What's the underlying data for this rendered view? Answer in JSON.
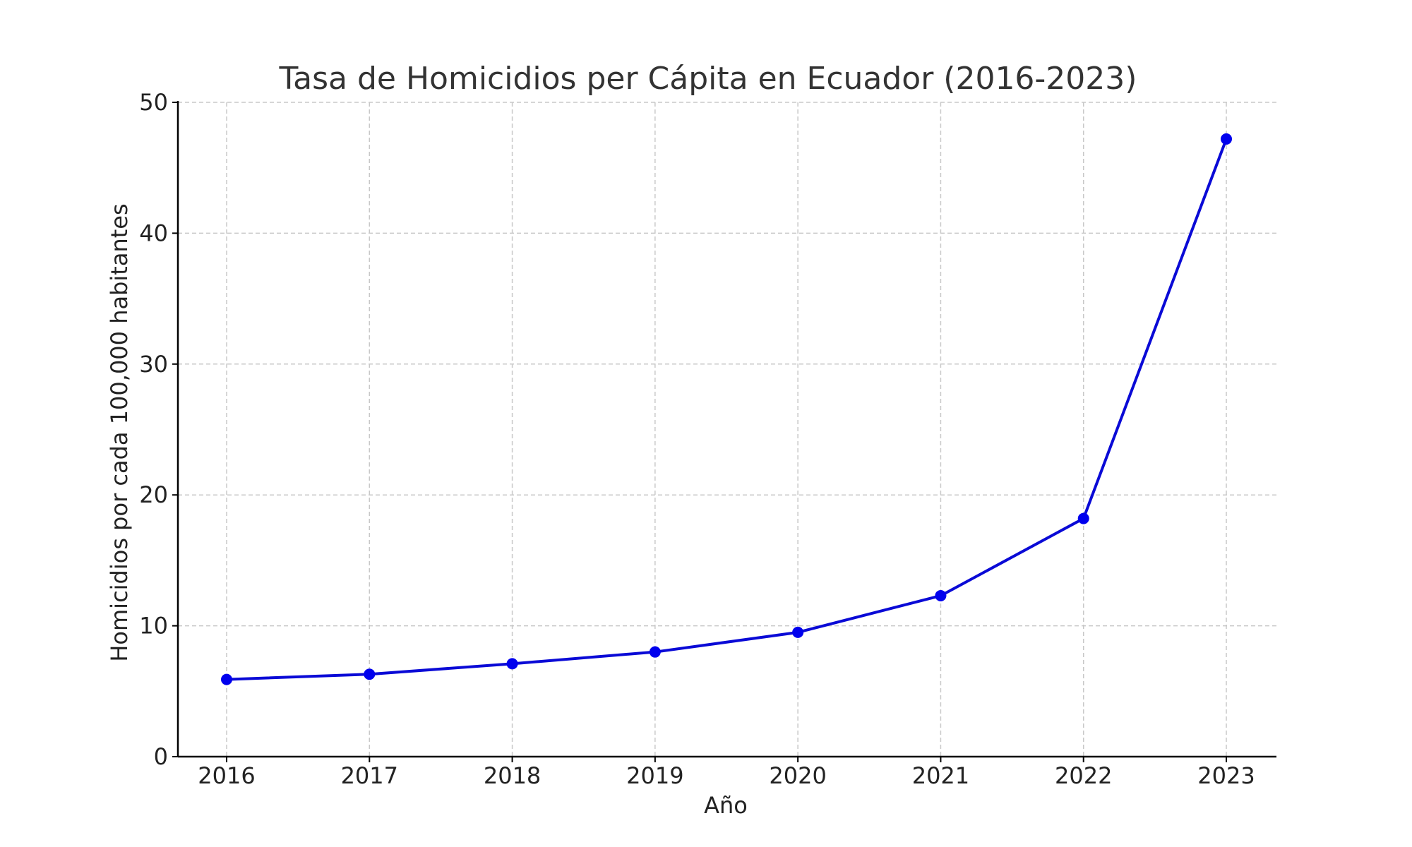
{
  "chart_data": {
    "type": "line",
    "title": "Tasa de Homicidios per Cápita en Ecuador (2016-2023)",
    "xlabel": "Año",
    "ylabel": "Homicidios por cada 100,000 habitantes",
    "categories": [
      "2016",
      "2017",
      "2018",
      "2019",
      "2020",
      "2021",
      "2022",
      "2023"
    ],
    "series": [
      {
        "values": [
          5.9,
          6.3,
          7.1,
          8.0,
          9.5,
          12.3,
          18.2,
          47.2
        ]
      }
    ],
    "ylim": [
      0,
      50
    ],
    "yticks": [
      "0",
      "10",
      "20",
      "30",
      "40",
      "50"
    ],
    "grid": true,
    "line_color": "#0a0ad6",
    "marker_color": "#0000ee",
    "legend": "none"
  }
}
